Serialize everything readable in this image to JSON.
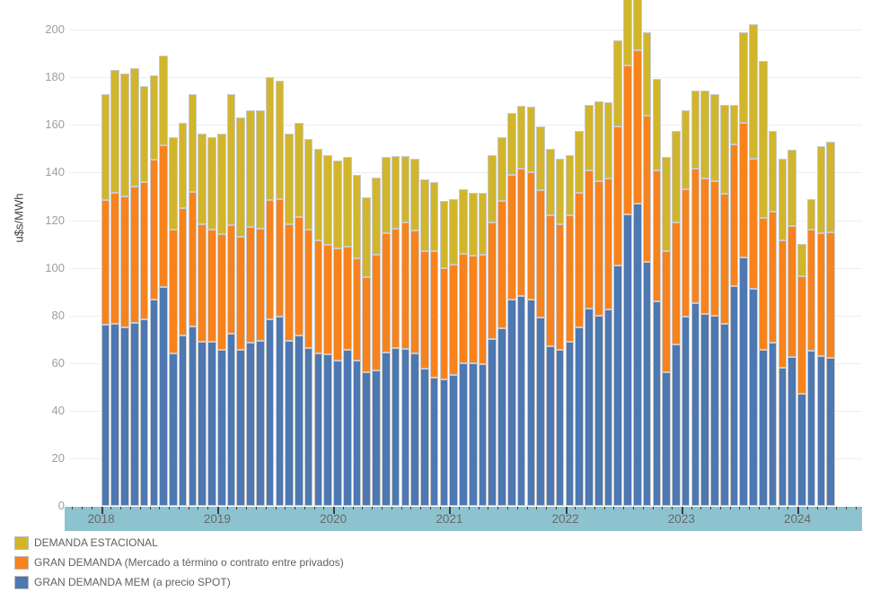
{
  "y_axis": {
    "title": "u$s/MWh",
    "tick_labels": [
      "0",
      "20",
      "40",
      "60",
      "80",
      "100",
      "120",
      "140",
      "160",
      "180",
      "200"
    ],
    "tick_values": [
      0,
      20,
      40,
      60,
      80,
      100,
      120,
      140,
      160,
      180,
      200
    ]
  },
  "x_axis": {
    "years": [
      "2018",
      "2019",
      "2020",
      "2021",
      "2022",
      "2023",
      "2024"
    ]
  },
  "colors": {
    "estacional": "#d1b62c",
    "gran_demanda": "#f8831c",
    "gran_demanda_mem": "#4d78b2",
    "axis_band": "#8dc3cf",
    "gridline": "#ededed",
    "segment_border": "#c9c9c9"
  },
  "legend": {
    "items": [
      {
        "label": "DEMANDA ESTACIONAL",
        "color": "#d1b62c"
      },
      {
        "label": "GRAN DEMANDA (Mercado a término o contrato entre privados)",
        "color": "#f8831c"
      },
      {
        "label": "GRAN DEMANDA MEM (a precio SPOT)",
        "color": "#4d78b2"
      }
    ]
  },
  "chart_data": {
    "type": "bar",
    "stacked": true,
    "title": "",
    "xlabel": "",
    "ylabel": "u$s/MWh",
    "ylim": [
      0,
      212.5
    ],
    "grid": true,
    "legend_position": "bottom-left",
    "x": [
      "2018-01",
      "2018-02",
      "2018-03",
      "2018-04",
      "2018-05",
      "2018-06",
      "2018-07",
      "2018-08",
      "2018-09",
      "2018-10",
      "2018-11",
      "2018-12",
      "2019-01",
      "2019-02",
      "2019-03",
      "2019-04",
      "2019-05",
      "2019-06",
      "2019-07",
      "2019-08",
      "2019-09",
      "2019-10",
      "2019-11",
      "2019-12",
      "2020-01",
      "2020-02",
      "2020-03",
      "2020-04",
      "2020-05",
      "2020-06",
      "2020-07",
      "2020-08",
      "2020-09",
      "2020-10",
      "2020-11",
      "2020-12",
      "2021-01",
      "2021-02",
      "2021-03",
      "2021-04",
      "2021-05",
      "2021-06",
      "2021-07",
      "2021-08",
      "2021-09",
      "2021-10",
      "2021-11",
      "2021-12",
      "2022-01",
      "2022-02",
      "2022-03",
      "2022-04",
      "2022-05",
      "2022-06",
      "2022-07",
      "2022-08",
      "2022-09",
      "2022-10",
      "2022-11",
      "2022-12",
      "2023-01",
      "2023-02",
      "2023-03",
      "2023-04",
      "2023-05",
      "2023-06",
      "2023-07",
      "2023-08",
      "2023-09",
      "2023-10",
      "2023-11",
      "2023-12",
      "2024-01",
      "2024-02",
      "2024-03",
      "2024-04"
    ],
    "series": [
      {
        "name": "GRAN DEMANDA MEM (a precio SPOT)",
        "color": "#4d78b2",
        "values": [
          76,
          76.5,
          75,
          77,
          78.5,
          86.5,
          92,
          64,
          71.5,
          75.5,
          69,
          69,
          65.5,
          72.5,
          65.5,
          68.5,
          69.5,
          78.5,
          79.5,
          69.5,
          71.5,
          66.5,
          64,
          63.5,
          61,
          65.5,
          61,
          56,
          57,
          64.5,
          66.5,
          66,
          64,
          57.5,
          54,
          53,
          55,
          60,
          60,
          59.5,
          70,
          74.5,
          86.5,
          88,
          86.5,
          79,
          67,
          65.5,
          69,
          75,
          83,
          80,
          82.5,
          101,
          122.5,
          127,
          102.5,
          86,
          56,
          68,
          79.5,
          85,
          80.5,
          80,
          76.5,
          92.5,
          104.5,
          91,
          65.5,
          68.5,
          58,
          62.5,
          47,
          65,
          63,
          62
        ]
      },
      {
        "name": "GRAN DEMANDA (Mercado a término o contrato entre privados)",
        "color": "#f8831c",
        "values": [
          52.5,
          55,
          55,
          57,
          57.5,
          59,
          59.5,
          52,
          53.5,
          56.5,
          49.5,
          47,
          48.5,
          45.5,
          47.5,
          48.5,
          47,
          50,
          49.5,
          49,
          50,
          49.5,
          47.5,
          46,
          47,
          43.5,
          43,
          40,
          48.5,
          50,
          50,
          53,
          51.5,
          49.5,
          53,
          47,
          46.5,
          46,
          45,
          46,
          49,
          53.5,
          52.5,
          53.5,
          53.5,
          53.5,
          55,
          53,
          53,
          56.5,
          58,
          56.5,
          55,
          58.5,
          62.5,
          64.5,
          61.5,
          55,
          51,
          51,
          53.5,
          56.5,
          57,
          56.5,
          54.5,
          59.5,
          56.5,
          55,
          55.5,
          55,
          53.5,
          55,
          49.5,
          51,
          51.5,
          53
        ]
      },
      {
        "name": "DEMANDA ESTACIONAL",
        "color": "#d1b62c",
        "values": [
          44.5,
          51.5,
          51.5,
          50,
          40.5,
          35.5,
          37.5,
          39,
          36,
          41,
          38,
          39,
          42.5,
          55,
          50,
          49,
          49.5,
          51.5,
          49.5,
          38,
          39.5,
          38,
          38.5,
          38,
          37,
          37.5,
          35,
          33.5,
          32.5,
          32,
          30.5,
          28,
          30.5,
          30,
          29,
          28,
          27.5,
          27,
          26.5,
          26,
          28.5,
          27,
          26,
          26.5,
          27.5,
          27,
          28,
          27.5,
          25.5,
          26,
          27.5,
          33.5,
          32,
          36,
          31,
          27,
          35,
          38.5,
          39.5,
          38.5,
          33,
          33,
          37,
          36.5,
          37.5,
          16.5,
          38,
          56.5,
          66,
          34,
          34.5,
          32,
          13.5,
          13,
          36.5,
          38
        ]
      }
    ]
  }
}
